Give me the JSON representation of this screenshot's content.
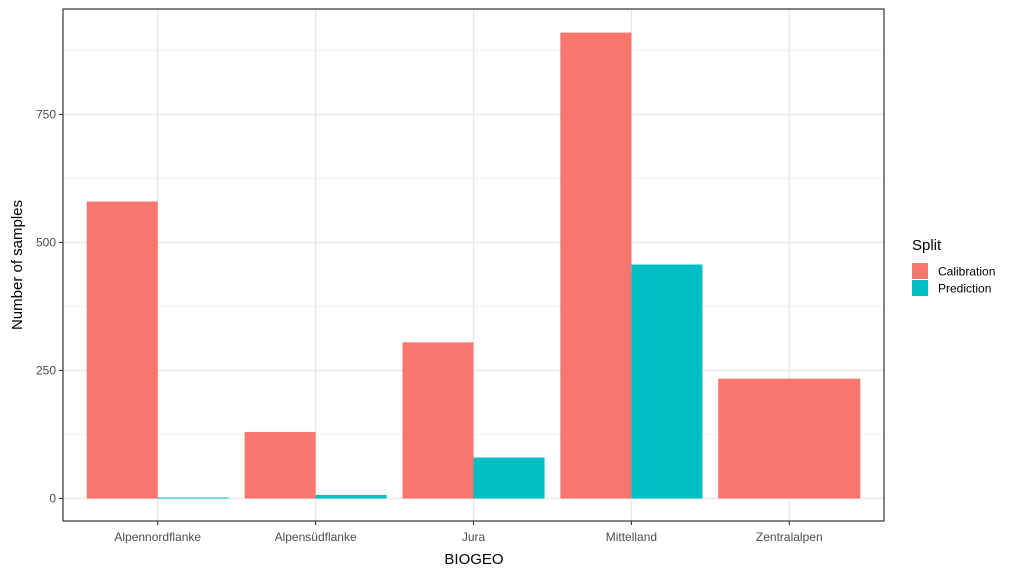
{
  "chart_data": {
    "type": "bar",
    "xlabel": "BIOGEO",
    "ylabel": "Number of samples",
    "categories": [
      "Alpennordflanke",
      "Alpensüdflanke",
      "Jura",
      "Mittelland",
      "Zentralalpen"
    ],
    "series": [
      {
        "name": "Calibration",
        "color": "#F8766D",
        "values": [
          580,
          130,
          305,
          910,
          234
        ]
      },
      {
        "name": "Prediction",
        "color": "#00BFC4",
        "values": [
          2,
          7,
          80,
          457,
          null
        ]
      }
    ],
    "y_ticks": [
      0,
      250,
      500,
      750
    ],
    "ylim": [
      -45,
      960
    ],
    "legend": {
      "title": "Split",
      "position": "right"
    },
    "grid": true,
    "theme": "bw"
  }
}
